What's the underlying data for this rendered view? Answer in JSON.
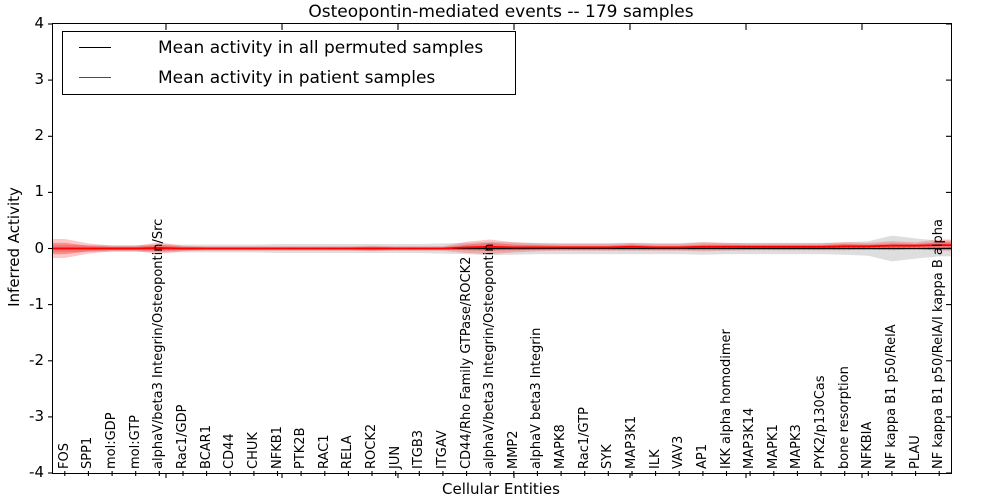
{
  "title": "Osteopontin-mediated events -- 179 samples",
  "axes": {
    "ylabel": "Inferred Activity",
    "xlabel": "Cellular Entities",
    "ylim": [
      -4,
      4
    ],
    "yticks": [
      4,
      3,
      2,
      1,
      0,
      -1,
      -2,
      -3,
      -4
    ]
  },
  "legend": {
    "items": [
      {
        "label": "Mean activity in all permuted samples",
        "color": "#000000"
      },
      {
        "label": "Mean activity in patient samples",
        "color": "#ff0000"
      }
    ]
  },
  "colors": {
    "permuted_line": "#000000",
    "patient_line": "#ff0000",
    "permuted_band": "rgba(0,0,0,0.13)",
    "patient_band_outer": "rgba(255,0,0,0.22)",
    "patient_band_inner": "rgba(255,0,0,0.30)",
    "zero_dotted_line": "#000000"
  },
  "chart_data": {
    "type": "line",
    "title": "Osteopontin-mediated events -- 179 samples",
    "xlabel": "Cellular Entities",
    "ylabel": "Inferred Activity",
    "ylim": [
      -4,
      4
    ],
    "grid": false,
    "legend_position": "upper left",
    "categories": [
      "FOS",
      "SPP1",
      "mol:GDP",
      "mol:GTP",
      "alphaV/beta3 Integrin/Osteopontin/Src",
      "Rac1/GDP",
      "BCAR1",
      "CD44",
      "CHUK",
      "NFKB1",
      "PTK2B",
      "RAC1",
      "RELA",
      "ROCK2",
      "JUN",
      "ITGB3",
      "ITGAV",
      "CD44/Rho Family GTPase/ROCK2",
      "alphaV/beta3 Integrin/Osteopontin",
      "MMP2",
      "alphaV beta3 Integrin",
      "MAPK8",
      "Rac1/GTP",
      "SYK",
      "MAP3K1",
      "ILK",
      "VAV3",
      "AP1",
      "IKK alpha homodimer",
      "MAP3K14",
      "MAPK1",
      "MAPK3",
      "PYK2/p130Cas",
      "bone resorption",
      "NFKBIA",
      "NF kappa B1 p50/RelA",
      "PLAU",
      "NF kappa B1 p50/RelA/I kappa B alpha"
    ],
    "series": [
      {
        "name": "Mean activity in all permuted samples",
        "color": "#000000",
        "values": [
          0,
          0,
          0,
          0,
          0,
          0,
          0,
          0,
          0,
          0,
          0,
          0,
          0,
          0,
          0,
          0,
          0,
          0,
          0,
          0,
          0,
          0,
          0,
          0,
          0,
          0,
          0,
          0,
          0,
          0,
          0,
          0,
          0,
          0,
          0,
          0,
          0,
          0
        ]
      },
      {
        "name": "Mean activity in patient samples",
        "color": "#ff0000",
        "values": [
          0,
          0,
          0,
          0,
          0.01,
          0,
          0,
          0,
          0,
          0,
          0,
          0,
          0,
          0,
          0,
          0,
          0,
          0.02,
          0.03,
          0.02,
          0.02,
          0.02,
          0.02,
          0.02,
          0.03,
          0.02,
          0.02,
          0.03,
          0.03,
          0.03,
          0.03,
          0.03,
          0.03,
          0.04,
          0.04,
          0.05,
          0.05,
          0.06
        ]
      }
    ],
    "bands": [
      {
        "name": "permuted-std-band",
        "center_series": 0,
        "color": "rgba(0,0,0,0.13)",
        "half_widths": [
          0.06,
          0.06,
          0.06,
          0.06,
          0.07,
          0.07,
          0.07,
          0.07,
          0.07,
          0.08,
          0.08,
          0.08,
          0.08,
          0.08,
          0.08,
          0.08,
          0.09,
          0.1,
          0.12,
          0.11,
          0.1,
          0.1,
          0.1,
          0.1,
          0.1,
          0.1,
          0.1,
          0.11,
          0.1,
          0.1,
          0.1,
          0.1,
          0.1,
          0.11,
          0.13,
          0.23,
          0.18,
          0.14
        ]
      },
      {
        "name": "patient-std-band-outer",
        "center_series": 1,
        "color": "rgba(255,0,0,0.22)",
        "half_widths": [
          0.17,
          0.09,
          0.05,
          0.05,
          0.1,
          0.05,
          0.04,
          0.04,
          0.04,
          0.04,
          0.04,
          0.04,
          0.04,
          0.05,
          0.04,
          0.04,
          0.04,
          0.1,
          0.13,
          0.09,
          0.07,
          0.06,
          0.06,
          0.06,
          0.07,
          0.06,
          0.06,
          0.08,
          0.07,
          0.06,
          0.06,
          0.06,
          0.06,
          0.07,
          0.06,
          0.08,
          0.06,
          0.1
        ]
      },
      {
        "name": "patient-std-band-inner",
        "center_series": 1,
        "color": "rgba(255,0,0,0.30)",
        "half_widths": [
          0.1,
          0.05,
          0.03,
          0.03,
          0.06,
          0.03,
          0.02,
          0.02,
          0.02,
          0.02,
          0.02,
          0.02,
          0.02,
          0.03,
          0.02,
          0.02,
          0.02,
          0.05,
          0.07,
          0.05,
          0.04,
          0.03,
          0.03,
          0.03,
          0.04,
          0.03,
          0.03,
          0.04,
          0.04,
          0.03,
          0.03,
          0.03,
          0.03,
          0.04,
          0.03,
          0.04,
          0.03,
          0.05
        ]
      }
    ],
    "zero_line": {
      "value": 0,
      "style": "dotted",
      "color": "#000000"
    }
  }
}
